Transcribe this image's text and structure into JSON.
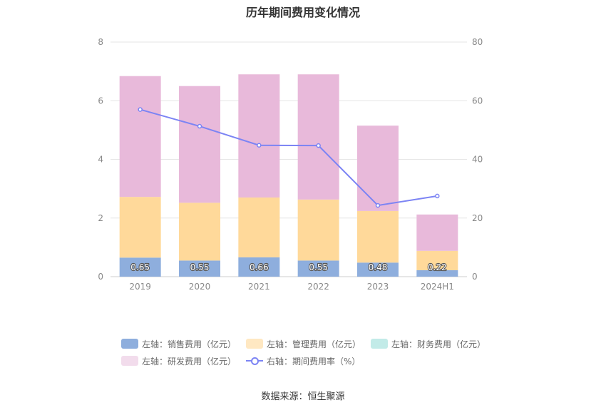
{
  "title": "历年期间费用变化情况",
  "source": "数据来源：恒生聚源",
  "chart_data": {
    "type": "bar",
    "stacked": true,
    "categories": [
      "2019",
      "2020",
      "2021",
      "2022",
      "2023",
      "2024H1"
    ],
    "left_axis": {
      "ylim": [
        0,
        8
      ],
      "ticks": [
        "0",
        "2",
        "4",
        "6",
        "8"
      ]
    },
    "right_axis": {
      "ylim": [
        0,
        80
      ],
      "ticks": [
        "0",
        "20",
        "40",
        "60",
        "80"
      ]
    },
    "series": [
      {
        "name": "左轴：销售费用（亿元）",
        "axis": "left",
        "kind": "bar",
        "color": "#8eaedd",
        "values": [
          0.65,
          0.55,
          0.66,
          0.55,
          0.48,
          0.22
        ],
        "labels": [
          "0.65",
          "0.55",
          "0.66",
          "0.55",
          "0.48",
          "0.22"
        ]
      },
      {
        "name": "左轴：管理费用（亿元）",
        "axis": "left",
        "kind": "bar",
        "color": "#ffd99a",
        "values": [
          2.07,
          1.97,
          2.04,
          2.08,
          1.76,
          0.66
        ]
      },
      {
        "name": "左轴：财务费用（亿元）",
        "axis": "left",
        "kind": "bar",
        "color": "#b5e6e3",
        "values": [
          0,
          0,
          0,
          0,
          0,
          0
        ]
      },
      {
        "name": "左轴：研发费用（亿元）",
        "axis": "left",
        "kind": "bar",
        "color": "#e8b9da",
        "values": [
          4.12,
          3.98,
          4.2,
          4.27,
          2.91,
          1.24
        ]
      },
      {
        "name": "右轴：期间费用率（%）",
        "axis": "right",
        "kind": "line",
        "color": "#7c84f4",
        "values": [
          57,
          51.3,
          44.8,
          44.7,
          24.3,
          27.5
        ]
      }
    ],
    "legend": {
      "rows": [
        [
          "左轴：销售费用（亿元）",
          "左轴：管理费用（亿元）",
          "左轴：财务费用（亿元）"
        ],
        [
          "左轴：研发费用（亿元）",
          "右轴：期间费用率（%）"
        ]
      ],
      "placement": "bottom"
    },
    "grid": true
  }
}
